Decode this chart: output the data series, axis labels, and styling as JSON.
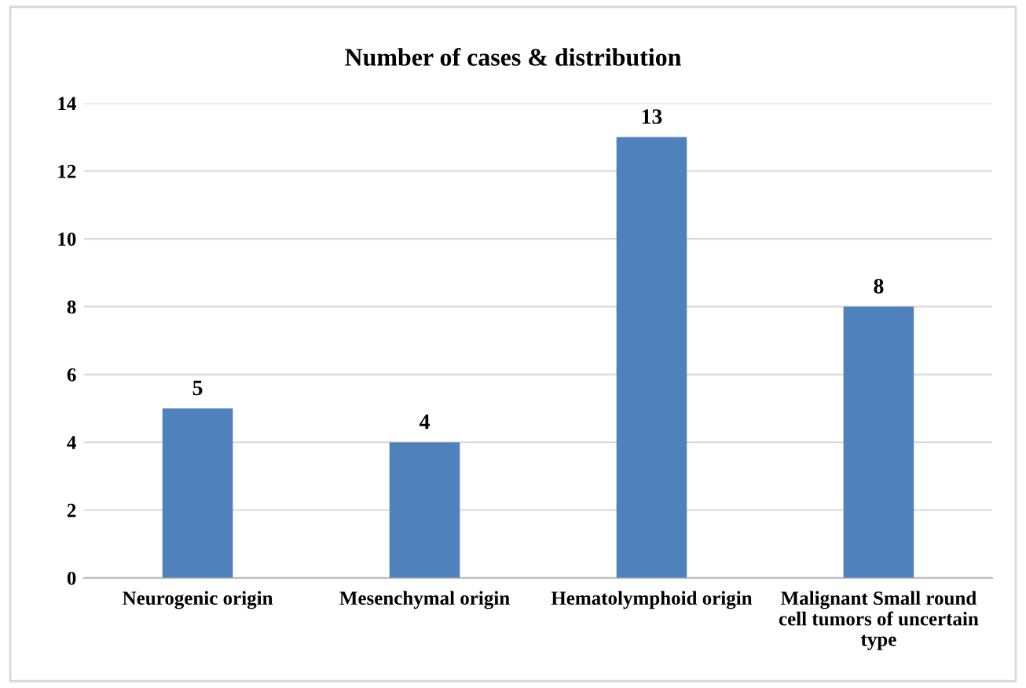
{
  "chart_data": {
    "type": "bar",
    "title": "Number of cases & distribution",
    "categories": [
      "Neurogenic origin",
      "Mesenchymal origin",
      "Hematolymphoid origin",
      "Malignant Small round\ncell tumors of uncertain\ntype"
    ],
    "values": [
      5,
      4,
      13,
      8
    ],
    "color": "#4f81bd",
    "ylim": [
      0,
      14
    ],
    "yticks": [
      0,
      2,
      4,
      6,
      8,
      10,
      12,
      14
    ],
    "grid": "y",
    "data_labels": true
  }
}
